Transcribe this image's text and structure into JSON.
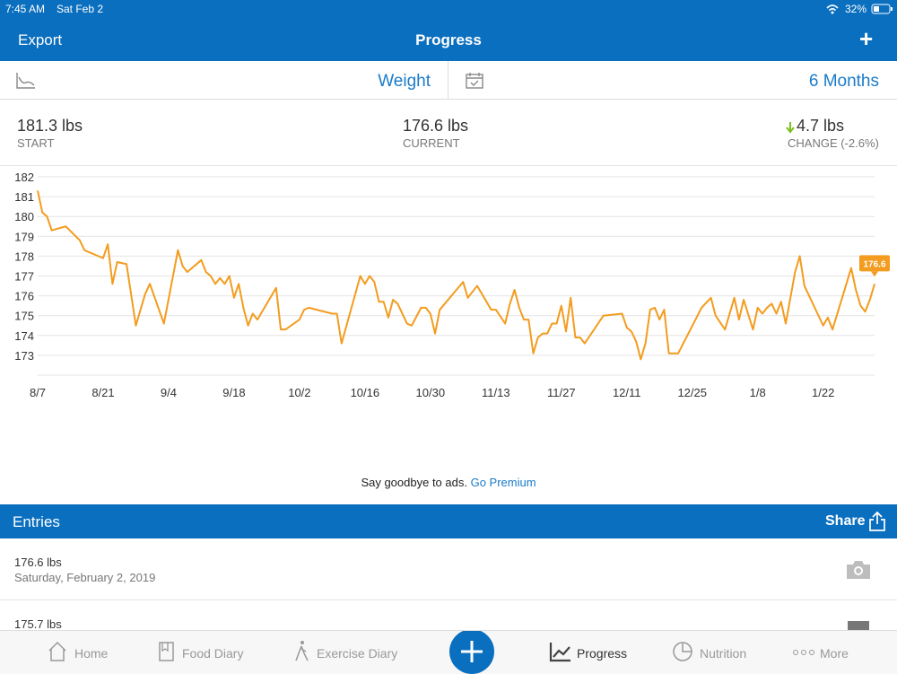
{
  "status_bar": {
    "time": "7:45 AM",
    "date": "Sat Feb 2",
    "battery": "32%"
  },
  "nav": {
    "left": "Export",
    "title": "Progress",
    "right": "+"
  },
  "toolbar": {
    "metric": "Weight",
    "range": "6 Months"
  },
  "stats": [
    {
      "value": "181.3 lbs",
      "label": "START"
    },
    {
      "value": "176.6 lbs",
      "label": "CURRENT"
    },
    {
      "value": "4.7 lbs",
      "label": "CHANGE (-2.6%)"
    }
  ],
  "chart_data": {
    "type": "line",
    "color": "#f39c1f",
    "grid": true,
    "annotation": "176.6",
    "x": [
      0,
      1,
      2,
      3,
      6,
      9,
      10,
      14,
      15,
      16,
      17,
      19,
      21,
      23,
      24,
      27,
      30,
      31,
      32,
      35,
      36,
      37,
      38,
      39,
      40,
      41,
      42,
      43,
      44,
      45,
      46,
      47,
      51,
      52,
      53,
      56,
      57,
      58,
      63,
      64,
      65,
      69,
      70,
      71,
      72,
      73,
      74,
      75,
      76,
      77,
      79,
      80,
      82,
      83,
      84,
      85,
      86,
      91,
      92,
      94,
      97,
      98,
      100,
      101,
      102,
      103,
      104,
      105,
      106,
      107,
      108,
      109,
      110,
      111,
      112,
      113,
      114,
      115,
      116,
      117,
      121,
      125,
      126,
      127,
      128,
      129,
      130,
      131,
      132,
      133,
      134,
      135,
      137,
      142,
      144,
      145,
      147,
      149,
      150,
      151,
      153,
      154,
      155,
      156,
      157,
      158,
      159,
      160,
      162,
      163,
      164,
      168,
      169,
      170,
      174,
      175,
      176,
      177,
      178,
      179
    ],
    "values": [
      181.3,
      180.2,
      180.0,
      179.3,
      179.5,
      178.8,
      178.3,
      177.9,
      178.6,
      176.6,
      177.7,
      177.6,
      174.5,
      176.1,
      176.6,
      174.6,
      178.3,
      177.5,
      177.2,
      177.8,
      177.2,
      177.0,
      176.6,
      176.9,
      176.6,
      177.0,
      175.9,
      176.6,
      175.4,
      174.5,
      175.1,
      174.8,
      176.4,
      174.3,
      174.3,
      174.8,
      175.3,
      175.4,
      175.1,
      175.1,
      173.6,
      177.0,
      176.6,
      177.0,
      176.7,
      175.7,
      175.7,
      174.9,
      175.8,
      175.6,
      174.6,
      174.5,
      175.4,
      175.4,
      175.1,
      174.1,
      175.3,
      176.7,
      175.9,
      176.5,
      175.3,
      175.3,
      174.6,
      175.6,
      176.3,
      175.4,
      174.8,
      174.8,
      173.1,
      173.9,
      174.1,
      174.1,
      174.6,
      174.6,
      175.5,
      174.2,
      175.9,
      173.9,
      173.9,
      173.6,
      175.0,
      175.1,
      174.4,
      174.2,
      173.7,
      172.8,
      173.6,
      175.3,
      175.4,
      174.8,
      175.3,
      173.1,
      173.1,
      175.4,
      175.9,
      175.0,
      174.3,
      175.9,
      174.8,
      175.8,
      174.3,
      175.4,
      175.1,
      175.4,
      175.6,
      175.1,
      175.7,
      174.6,
      177.2,
      178.0,
      176.5,
      174.5,
      174.9,
      174.3,
      177.4,
      176.3,
      175.5,
      175.2,
      175.8,
      176.6
    ],
    "xlim": [
      0,
      179
    ],
    "xticks": [
      {
        "value": 0,
        "label": "8/7"
      },
      {
        "value": 14,
        "label": "8/21"
      },
      {
        "value": 28,
        "label": "9/4"
      },
      {
        "value": 42,
        "label": "9/18"
      },
      {
        "value": 56,
        "label": "10/2"
      },
      {
        "value": 70,
        "label": "10/16"
      },
      {
        "value": 84,
        "label": "10/30"
      },
      {
        "value": 98,
        "label": "11/13"
      },
      {
        "value": 112,
        "label": "11/27"
      },
      {
        "value": 126,
        "label": "12/11"
      },
      {
        "value": 140,
        "label": "12/25"
      },
      {
        "value": 154,
        "label": "1/8"
      },
      {
        "value": 168,
        "label": "1/22"
      }
    ],
    "ylim": [
      172,
      182
    ],
    "yticks": [
      173,
      174,
      175,
      176,
      177,
      178,
      179,
      180,
      181,
      182
    ]
  },
  "ad": {
    "text": "Say goodbye to ads.",
    "link": "Go Premium"
  },
  "entries_header": {
    "title": "Entries",
    "action": "Share"
  },
  "entries": [
    {
      "weight": "176.6 lbs",
      "date": "Saturday, February 2, 2019"
    },
    {
      "weight": "175.7 lbs"
    }
  ],
  "tab_bar": [
    "Home",
    "Food Diary",
    "Exercise Diary",
    "Progress",
    "Nutrition",
    "More"
  ]
}
